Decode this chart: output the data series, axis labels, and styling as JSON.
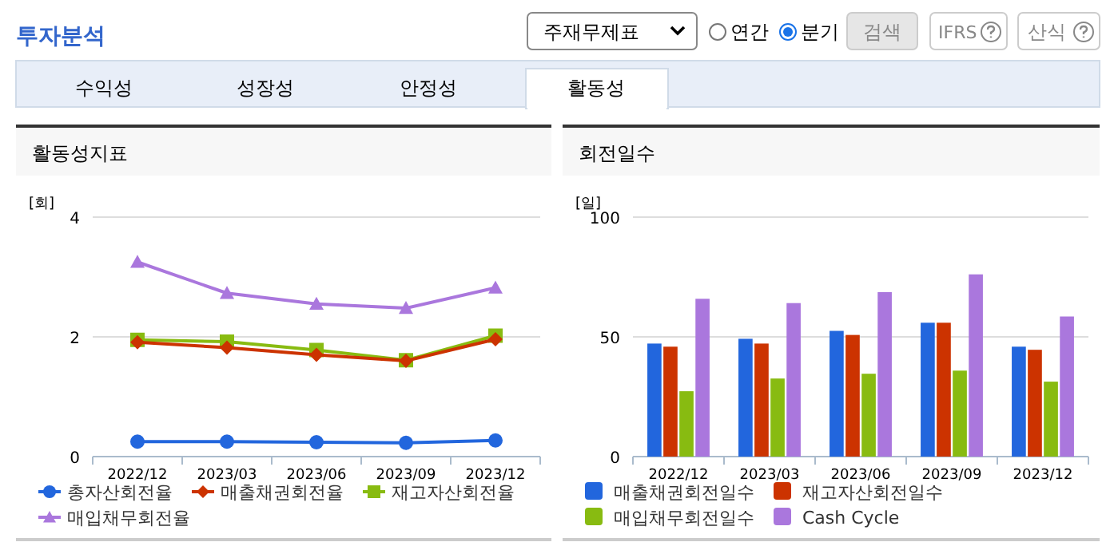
{
  "chart_data": [
    {
      "type": "other",
      "title": "투자분석",
      "annotations": [
        "주재무제표",
        "연간",
        "분기",
        "검색",
        "IFRS",
        "산식",
        "수익성",
        "성장성",
        "안정성",
        "활동성"
      ]
    },
    {
      "type": "line",
      "title": "활동성지표",
      "ylabel": "[회]",
      "categories": [
        "2022/12",
        "2023/03",
        "2023/06",
        "2023/09",
        "2023/12"
      ],
      "ylim": [
        0,
        4
      ],
      "yticks": [
        0,
        2,
        4
      ],
      "grid": "y",
      "legend": "bottom",
      "line_style": "solid",
      "series": [
        {
          "name": "총자산회전율",
          "color": "#2266dd",
          "marker": "circle",
          "values": [
            0.25,
            0.25,
            0.24,
            0.23,
            0.27
          ]
        },
        {
          "name": "매출채권회전율",
          "color": "#cc3300",
          "marker": "diamond",
          "values": [
            1.91,
            1.82,
            1.7,
            1.6,
            1.96
          ]
        },
        {
          "name": "재고자산회전율",
          "color": "#88bb11",
          "marker": "square",
          "values": [
            1.95,
            1.92,
            1.78,
            1.61,
            2.02
          ]
        },
        {
          "name": "매입채무회전율",
          "color": "#aa77dd",
          "marker": "triangle",
          "values": [
            3.25,
            2.73,
            2.55,
            2.48,
            2.82
          ]
        }
      ]
    },
    {
      "type": "bar",
      "title": "회전일수",
      "ylabel": "[일]",
      "categories": [
        "2022/12",
        "2023/03",
        "2023/06",
        "2023/09",
        "2023/12"
      ],
      "ylim": [
        0,
        100
      ],
      "yticks": [
        0,
        50,
        100
      ],
      "grid": "y",
      "legend": "bottom",
      "series": [
        {
          "name": "매출채권회전일수",
          "color": "#2266dd",
          "values": [
            47.2,
            49.2,
            52.5,
            55.9,
            45.9
          ]
        },
        {
          "name": "재고자산회전일수",
          "color": "#cc3300",
          "values": [
            45.9,
            47.2,
            50.8,
            55.9,
            44.6
          ]
        },
        {
          "name": "매입채무회전일수",
          "color": "#88bb11",
          "values": [
            27.3,
            32.6,
            34.6,
            35.9,
            31.3
          ]
        },
        {
          "name": "Cash Cycle",
          "color": "#aa77dd",
          "values": [
            65.9,
            64.1,
            68.7,
            76.1,
            58.5
          ]
        }
      ]
    }
  ]
}
